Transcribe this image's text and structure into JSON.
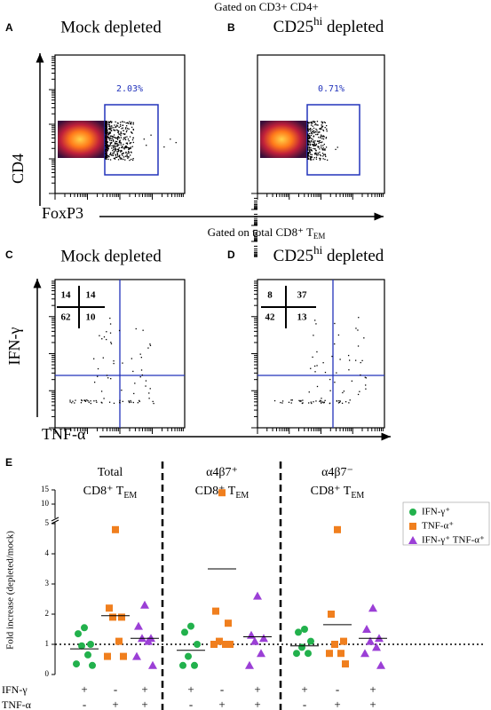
{
  "header": {
    "top": "Gated on CD3+ CD4+",
    "middle": {
      "text": "Gated on total CD8⁺ T",
      "sub": "EM"
    }
  },
  "panels": [
    {
      "label": "A",
      "title": "Mock depleted",
      "gate": "2.03%",
      "y_axis": "CD4",
      "x_axis": "FoxP3"
    },
    {
      "label": "B",
      "title": {
        "text": "CD25",
        "sup": "hi",
        "rest": " depleted"
      },
      "gate": "0.71%"
    },
    {
      "label": "C",
      "title": "Mock depleted",
      "quadrants": [
        14,
        14,
        62,
        10
      ],
      "y_axis": "IFN-γ",
      "x_axis": "TNF-α"
    },
    {
      "label": "D",
      "title": {
        "text": "CD25",
        "sup": "hi",
        "rest": " depleted"
      },
      "quadrants": [
        8,
        37,
        42,
        13
      ]
    }
  ],
  "chart_data": {
    "type": "scatter",
    "panel_label": "E",
    "ylabel": "Fold increase (depleted/mock)",
    "ylim": [
      0,
      15
    ],
    "ybreak": 5,
    "yticks": [
      0,
      1,
      2,
      3,
      4,
      5,
      10,
      15
    ],
    "reference_line": 1,
    "legend": "upper right",
    "groups": [
      {
        "title": "Total",
        "subtitle": {
          "text": "CD8⁺ T",
          "sub": "EM"
        }
      },
      {
        "title": "α4β7⁺",
        "subtitle": {
          "text": "CD8⁺ T",
          "sub": "EM"
        }
      },
      {
        "title": "α4β7⁻",
        "subtitle": {
          "text": "CD8⁺ T",
          "sub": "EM"
        }
      }
    ],
    "series": [
      {
        "name": "IFN-γ⁺",
        "color": "#22b14c",
        "marker": "circle",
        "values": [
          [
            1.55,
            1.35,
            1.0,
            0.95,
            0.65,
            0.35,
            0.3
          ],
          [
            1.6,
            1.4,
            1.0,
            0.6,
            0.3,
            0.3
          ],
          [
            1.5,
            1.4,
            1.1,
            0.9,
            0.7,
            0.7
          ]
        ],
        "means": [
          0.85,
          0.8,
          0.95
        ]
      },
      {
        "name": "TNF-α⁺",
        "color": "#f07f1e",
        "marker": "square",
        "values": [
          [
            4.8,
            2.2,
            1.9,
            1.9,
            1.1,
            0.6,
            0.6
          ],
          [
            14,
            2.1,
            1.7,
            1.1,
            1.0,
            1.0,
            1.0
          ],
          [
            4.8,
            2.0,
            1.1,
            1.0,
            0.7,
            0.7,
            0.35
          ]
        ],
        "means": [
          1.95,
          3.5,
          1.65
        ]
      },
      {
        "name": "IFN-γ⁺ TNF-α⁺",
        "color": "#9b3fd6",
        "marker": "triangle",
        "values": [
          [
            2.3,
            1.6,
            1.2,
            1.2,
            1.1,
            0.6,
            0.3
          ],
          [
            2.6,
            1.3,
            1.2,
            1.1,
            0.7,
            0.3
          ],
          [
            2.2,
            1.5,
            1.2,
            1.1,
            0.9,
            0.7,
            0.3
          ]
        ],
        "means": [
          1.2,
          1.25,
          1.2
        ]
      }
    ],
    "conditions": [
      {
        "name": "IFN-γ",
        "signs": [
          "+",
          "-",
          "+",
          "+",
          "-",
          "+",
          "+",
          "-",
          "+"
        ]
      },
      {
        "name": "TNF-α",
        "signs": [
          "-",
          "+",
          "+",
          "-",
          "+",
          "+",
          "-",
          "+",
          "+"
        ]
      }
    ]
  }
}
